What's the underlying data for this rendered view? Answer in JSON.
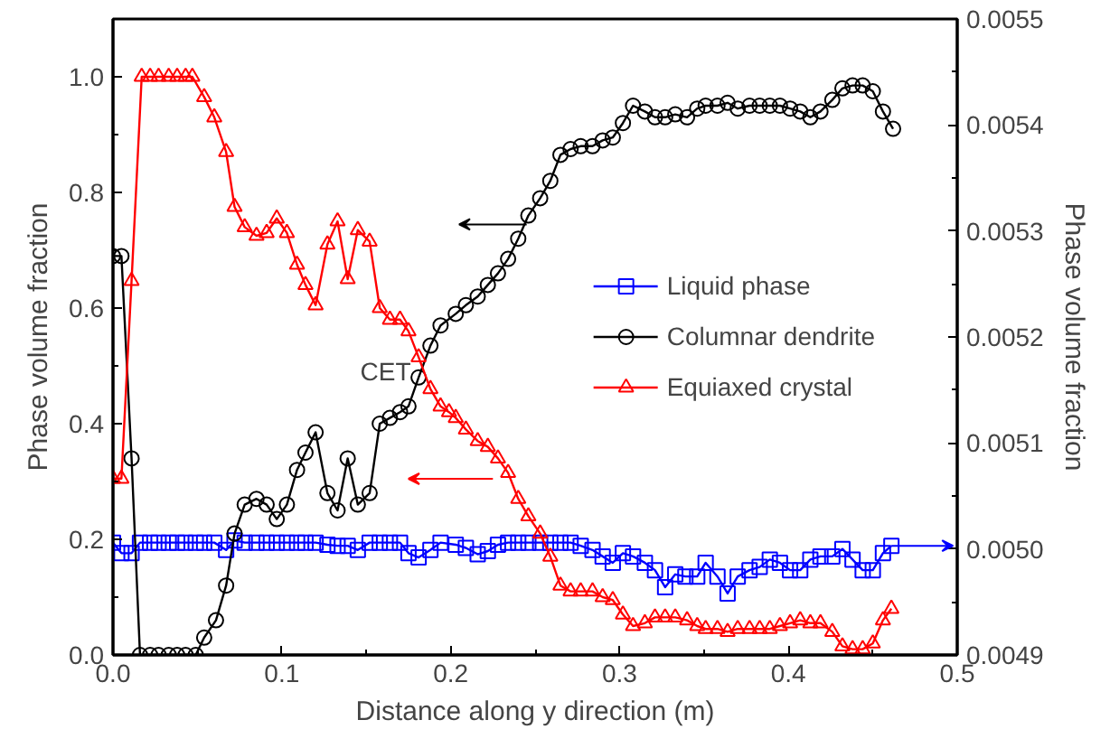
{
  "chart_data": {
    "type": "line",
    "xlabel": "Distance along y direction (m)",
    "ylabel": "Phase volume fraction",
    "y2label": "Phase volume fraction",
    "xlim": [
      0,
      0.5
    ],
    "xticks": [
      {
        "value": 0,
        "label": "0.0"
      },
      0.1,
      0.2,
      0.3,
      0.4,
      0.5
    ],
    "ylim": [
      0,
      1.1
    ],
    "yticks": [
      {
        "value": 0,
        "label": "0.0"
      },
      0.2,
      0.4,
      0.6,
      0.8,
      {
        "value": 1,
        "label": "1.0"
      }
    ],
    "y2lim": [
      0.0049,
      0.0055
    ],
    "y2ticks": [
      0.0049,
      {
        "value": 0.005,
        "label": "0.0050"
      },
      0.0051,
      0.0052,
      0.0053,
      0.0054,
      0.0055
    ],
    "grid": false,
    "legend": "right",
    "line_style": "solid",
    "annotations": [
      {
        "text": "CET",
        "x": 0.185,
        "y": 0.49
      }
    ],
    "series": [
      {
        "name": "Liquid phase",
        "color": "#0000ff",
        "marker": "square",
        "axis": "y2",
        "x": [
          0.0,
          0.005,
          0.011,
          0.016,
          0.022,
          0.027,
          0.033,
          0.038,
          0.043,
          0.049,
          0.054,
          0.06,
          0.067,
          0.072,
          0.078,
          0.085,
          0.091,
          0.097,
          0.103,
          0.109,
          0.114,
          0.12,
          0.127,
          0.133,
          0.139,
          0.145,
          0.152,
          0.158,
          0.164,
          0.17,
          0.175,
          0.181,
          0.188,
          0.194,
          0.203,
          0.209,
          0.216,
          0.222,
          0.228,
          0.234,
          0.24,
          0.246,
          0.253,
          0.259,
          0.265,
          0.271,
          0.277,
          0.284,
          0.29,
          0.296,
          0.302,
          0.308,
          0.315,
          0.321,
          0.327,
          0.333,
          0.339,
          0.346,
          0.351,
          0.358,
          0.364,
          0.37,
          0.377,
          0.383,
          0.389,
          0.395,
          0.401,
          0.407,
          0.413,
          0.419,
          0.426,
          0.432,
          0.438,
          0.444,
          0.45,
          0.456,
          0.461
        ],
        "values": [
          0.005006,
          0.004996,
          0.004996,
          0.005006,
          0.005006,
          0.005006,
          0.005006,
          0.005006,
          0.005006,
          0.005006,
          0.005006,
          0.005006,
          0.004999,
          0.005008,
          0.005006,
          0.005006,
          0.005006,
          0.005006,
          0.005006,
          0.005006,
          0.005006,
          0.005006,
          0.005004,
          0.005003,
          0.005003,
          0.004999,
          0.005006,
          0.005006,
          0.005006,
          0.005006,
          0.004996,
          0.004992,
          0.004999,
          0.005006,
          0.005004,
          0.005001,
          0.004995,
          0.004998,
          0.005004,
          0.005006,
          0.005006,
          0.005006,
          0.005006,
          0.005006,
          0.005006,
          0.005006,
          0.005003,
          0.004999,
          0.004993,
          0.004987,
          0.004996,
          0.004993,
          0.004987,
          0.00498,
          0.004964,
          0.004976,
          0.004974,
          0.004974,
          0.004987,
          0.004974,
          0.004958,
          0.004974,
          0.00498,
          0.004983,
          0.00499,
          0.004987,
          0.00498,
          0.00498,
          0.00499,
          0.004993,
          0.004993,
          0.005,
          0.00499,
          0.00498,
          0.00498,
          0.004996,
          0.005003
        ]
      },
      {
        "name": "Columnar dendrite",
        "color": "#000000",
        "marker": "circle",
        "x": [
          0.0,
          0.005,
          0.011,
          0.016,
          0.022,
          0.027,
          0.033,
          0.038,
          0.043,
          0.049,
          0.054,
          0.061,
          0.067,
          0.072,
          0.078,
          0.085,
          0.091,
          0.097,
          0.103,
          0.109,
          0.114,
          0.12,
          0.127,
          0.133,
          0.139,
          0.145,
          0.152,
          0.158,
          0.164,
          0.17,
          0.175,
          0.181,
          0.188,
          0.194,
          0.203,
          0.209,
          0.216,
          0.222,
          0.228,
          0.234,
          0.24,
          0.246,
          0.253,
          0.259,
          0.265,
          0.271,
          0.277,
          0.284,
          0.29,
          0.296,
          0.302,
          0.308,
          0.315,
          0.321,
          0.327,
          0.333,
          0.34,
          0.346,
          0.351,
          0.358,
          0.364,
          0.37,
          0.377,
          0.383,
          0.389,
          0.395,
          0.401,
          0.407,
          0.413,
          0.419,
          0.426,
          0.432,
          0.438,
          0.444,
          0.45,
          0.456,
          0.462
        ],
        "values": [
          0.69,
          0.69,
          0.34,
          0.0,
          0.0,
          0.0,
          0.0,
          0.0,
          0.0,
          0.0,
          0.03,
          0.06,
          0.12,
          0.21,
          0.26,
          0.27,
          0.26,
          0.235,
          0.26,
          0.32,
          0.35,
          0.385,
          0.28,
          0.25,
          0.34,
          0.26,
          0.28,
          0.4,
          0.41,
          0.42,
          0.43,
          0.48,
          0.535,
          0.57,
          0.59,
          0.605,
          0.62,
          0.64,
          0.66,
          0.685,
          0.72,
          0.76,
          0.79,
          0.82,
          0.865,
          0.875,
          0.88,
          0.88,
          0.89,
          0.895,
          0.92,
          0.95,
          0.94,
          0.93,
          0.93,
          0.935,
          0.93,
          0.945,
          0.95,
          0.95,
          0.955,
          0.945,
          0.95,
          0.95,
          0.95,
          0.95,
          0.945,
          0.94,
          0.93,
          0.94,
          0.96,
          0.98,
          0.985,
          0.985,
          0.975,
          0.94,
          0.91
        ]
      },
      {
        "name": "Equiaxed crystal",
        "color": "#ff0000",
        "marker": "triangle",
        "x": [
          0.0,
          0.005,
          0.011,
          0.017,
          0.022,
          0.027,
          0.033,
          0.038,
          0.043,
          0.047,
          0.054,
          0.06,
          0.067,
          0.072,
          0.078,
          0.085,
          0.091,
          0.097,
          0.103,
          0.109,
          0.114,
          0.12,
          0.127,
          0.133,
          0.139,
          0.145,
          0.152,
          0.158,
          0.164,
          0.17,
          0.175,
          0.181,
          0.188,
          0.194,
          0.199,
          0.203,
          0.209,
          0.216,
          0.222,
          0.228,
          0.234,
          0.24,
          0.246,
          0.253,
          0.259,
          0.265,
          0.271,
          0.277,
          0.284,
          0.29,
          0.296,
          0.302,
          0.308,
          0.315,
          0.321,
          0.327,
          0.333,
          0.34,
          0.346,
          0.351,
          0.358,
          0.364,
          0.37,
          0.377,
          0.383,
          0.389,
          0.395,
          0.401,
          0.407,
          0.413,
          0.419,
          0.426,
          0.432,
          0.438,
          0.444,
          0.45,
          0.456,
          0.461
        ],
        "values": [
          0.305,
          0.305,
          0.647,
          1.0,
          1.0,
          1.0,
          1.0,
          1.0,
          1.0,
          1.0,
          0.965,
          0.93,
          0.87,
          0.775,
          0.74,
          0.725,
          0.73,
          0.755,
          0.73,
          0.675,
          0.64,
          0.605,
          0.71,
          0.75,
          0.65,
          0.735,
          0.715,
          0.6,
          0.58,
          0.58,
          0.56,
          0.515,
          0.46,
          0.43,
          0.42,
          0.41,
          0.39,
          0.37,
          0.36,
          0.34,
          0.315,
          0.27,
          0.24,
          0.21,
          0.17,
          0.12,
          0.11,
          0.11,
          0.11,
          0.1,
          0.095,
          0.07,
          0.05,
          0.055,
          0.065,
          0.065,
          0.065,
          0.06,
          0.05,
          0.045,
          0.045,
          0.04,
          0.045,
          0.045,
          0.045,
          0.045,
          0.05,
          0.055,
          0.06,
          0.055,
          0.055,
          0.04,
          0.015,
          0.01,
          0.01,
          0.02,
          0.06,
          0.08
        ]
      }
    ]
  }
}
